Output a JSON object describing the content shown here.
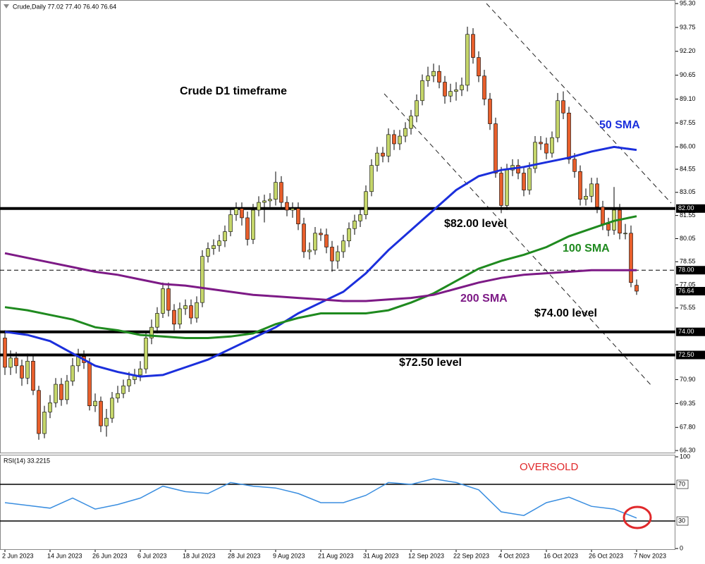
{
  "chart_data": [
    {
      "type": "candlestick",
      "header": "Crude,Daily 77.02 77.40 76.40 76.64",
      "categories": [
        "2 Jun 2023",
        null,
        null,
        null,
        null,
        null,
        null,
        null,
        "14 Jun 2023",
        null,
        null,
        null,
        null,
        null,
        null,
        null,
        "26 Jun 2023",
        null,
        null,
        null,
        null,
        null,
        null,
        null,
        "6 Jul 2023",
        null,
        null,
        null,
        null,
        null,
        null,
        null,
        "18 Jul 2023",
        null,
        null,
        null,
        null,
        null,
        null,
        null,
        "28 Jul 2023",
        null,
        null,
        null,
        null,
        null,
        null,
        null,
        "9 Aug 2023",
        null,
        null,
        null,
        null,
        null,
        null,
        null,
        "21 Aug 2023",
        null,
        null,
        null,
        null,
        null,
        null,
        null,
        "31 Aug 2023",
        null,
        null,
        null,
        null,
        null,
        null,
        null,
        "12 Sep 2023",
        null,
        null,
        null,
        null,
        null,
        null,
        null,
        "22 Sep 2023",
        null,
        null,
        null,
        null,
        null,
        null,
        null,
        "4 Oct 2023",
        null,
        null,
        null,
        null,
        null,
        null,
        null,
        "16 Oct 2023",
        null,
        null,
        null,
        null,
        null,
        null,
        null,
        "26 Oct 2023",
        null,
        null,
        null,
        null,
        null,
        null,
        null,
        "7 Nov 2023"
      ],
      "open": [
        73.6,
        71.7,
        72.3,
        71.8,
        71.0,
        72.1,
        70.2,
        67.4,
        68.8,
        69.4,
        70.6,
        69.6,
        70.8,
        71.8,
        72.4,
        72.0,
        69.2,
        69.5,
        67.9,
        68.4,
        69.7,
        70.0,
        70.5,
        70.9,
        71.2,
        71.6,
        73.6,
        74.3,
        75.2,
        76.8,
        75.4,
        74.5,
        75.5,
        75.7,
        74.9,
        75.9,
        78.9,
        79.4,
        79.6,
        79.9,
        80.5,
        81.6,
        82.0,
        81.4,
        80.0,
        81.9,
        82.4,
        82.5,
        82.6,
        83.7,
        82.4,
        81.9,
        82.0,
        81.0,
        79.2,
        79.3,
        80.4,
        80.3,
        79.5,
        78.6,
        79.2,
        79.9,
        80.7,
        81.2,
        81.6,
        83.1,
        84.8,
        85.6,
        85.4,
        86.8,
        86.2,
        86.7,
        87.2,
        88.0,
        89.0,
        90.3,
        90.6,
        90.9,
        90.2,
        89.3,
        89.6,
        89.7,
        90.0,
        93.3,
        91.8,
        90.6,
        89.1,
        87.5,
        84.3,
        82.2,
        84.5,
        84.8,
        84.3,
        83.2,
        84.6,
        86.3,
        86.2,
        85.6,
        86.6,
        89.0,
        88.2,
        85.2,
        84.4,
        82.6,
        82.8,
        83.6,
        82.1,
        81.0,
        80.6,
        81.9,
        80.4,
        80.4,
        77.02
      ],
      "high": [
        74.1,
        72.8,
        72.7,
        72.2,
        72.6,
        72.5,
        70.5,
        69.2,
        69.9,
        71.0,
        71.0,
        71.2,
        72.3,
        72.9,
        72.8,
        72.3,
        70.0,
        69.8,
        69.0,
        70.1,
        70.5,
        70.9,
        71.4,
        71.6,
        72.1,
        74.0,
        74.8,
        75.6,
        77.2,
        77.2,
        75.8,
        75.9,
        76.1,
        76.1,
        76.3,
        79.3,
        79.8,
        80.0,
        80.3,
        80.9,
        82.0,
        82.4,
        82.4,
        81.8,
        82.3,
        82.8,
        82.9,
        83.0,
        84.4,
        84.1,
        82.8,
        82.4,
        82.4,
        81.4,
        79.8,
        80.8,
        80.7,
        80.7,
        79.9,
        79.6,
        80.3,
        81.1,
        81.6,
        82.0,
        83.5,
        85.2,
        86.0,
        86.0,
        87.2,
        87.1,
        87.1,
        87.6,
        88.4,
        89.4,
        90.7,
        91.2,
        91.4,
        91.3,
        90.6,
        90.1,
        90.2,
        90.5,
        93.8,
        93.7,
        92.2,
        91.0,
        89.5,
        87.9,
        84.7,
        84.9,
        85.2,
        85.2,
        84.7,
        85.0,
        86.7,
        86.7,
        86.6,
        87.0,
        89.5,
        89.6,
        88.6,
        85.6,
        84.8,
        83.3,
        84.0,
        84.0,
        82.5,
        81.4,
        83.4,
        82.3,
        81.0,
        80.9,
        77.4
      ],
      "low": [
        71.2,
        71.2,
        71.3,
        70.5,
        70.6,
        69.9,
        67.0,
        67.1,
        68.4,
        69.1,
        69.2,
        69.3,
        70.5,
        71.4,
        71.6,
        68.9,
        68.8,
        67.5,
        67.2,
        68.1,
        69.4,
        69.7,
        70.1,
        70.6,
        70.8,
        71.3,
        73.2,
        73.9,
        74.9,
        75.0,
        74.1,
        74.2,
        75.1,
        74.5,
        74.6,
        75.6,
        78.5,
        79.0,
        79.2,
        79.5,
        80.2,
        81.2,
        80.9,
        79.6,
        79.7,
        81.5,
        81.1,
        82.1,
        82.2,
        82.0,
        81.5,
        81.4,
        80.6,
        78.8,
        78.7,
        79.0,
        79.9,
        79.1,
        77.9,
        78.1,
        78.8,
        79.5,
        80.3,
        80.8,
        81.3,
        82.8,
        84.4,
        85.0,
        85.0,
        85.8,
        85.8,
        86.3,
        86.8,
        87.6,
        88.7,
        89.9,
        90.2,
        89.8,
        88.8,
        88.9,
        89.0,
        89.3,
        89.6,
        91.4,
        90.2,
        88.7,
        87.1,
        84.0,
        81.7,
        81.9,
        84.1,
        83.9,
        82.8,
        82.9,
        84.3,
        85.8,
        85.2,
        85.3,
        86.3,
        87.8,
        84.9,
        84.0,
        82.2,
        82.2,
        82.4,
        81.7,
        80.6,
        80.2,
        80.3,
        80.0,
        80.0,
        76.9,
        76.4
      ],
      "close": [
        71.7,
        72.3,
        71.8,
        71.0,
        72.1,
        70.2,
        67.4,
        68.8,
        69.4,
        70.6,
        69.6,
        70.8,
        71.8,
        72.4,
        72.0,
        69.2,
        69.5,
        67.9,
        68.4,
        69.7,
        70.0,
        70.5,
        70.9,
        71.2,
        71.6,
        73.6,
        74.3,
        75.2,
        76.8,
        75.4,
        74.5,
        75.5,
        75.7,
        74.9,
        75.9,
        78.9,
        79.4,
        79.6,
        79.9,
        80.5,
        81.6,
        82.0,
        81.4,
        80.0,
        81.9,
        82.4,
        82.5,
        82.6,
        83.7,
        82.4,
        81.9,
        82.0,
        81.0,
        79.2,
        79.3,
        80.4,
        80.3,
        79.5,
        78.6,
        79.2,
        79.9,
        80.7,
        81.2,
        81.6,
        83.1,
        84.8,
        85.6,
        85.4,
        86.8,
        86.2,
        86.7,
        87.2,
        88.0,
        89.0,
        90.3,
        90.6,
        90.9,
        90.2,
        89.3,
        89.6,
        89.7,
        90.0,
        93.3,
        91.8,
        90.6,
        89.1,
        87.5,
        84.3,
        82.2,
        84.5,
        84.8,
        84.3,
        83.2,
        84.6,
        86.3,
        86.2,
        85.6,
        86.6,
        89.0,
        88.2,
        85.2,
        84.4,
        82.6,
        82.8,
        83.6,
        82.1,
        81.0,
        80.6,
        81.9,
        80.4,
        80.4,
        77.2,
        76.64
      ],
      "up_color": "#c5d66a",
      "down_color": "#e85f2c",
      "lines": [
        {
          "name": "50 SMA",
          "color": "#1b2fdc",
          "x": [
            0,
            4,
            8,
            12,
            16,
            20,
            24,
            28,
            32,
            36,
            40,
            44,
            48,
            52,
            56,
            60,
            64,
            68,
            72,
            76,
            80,
            84,
            88,
            92,
            96,
            100,
            104,
            108,
            112
          ],
          "values": [
            74.0,
            73.8,
            73.4,
            72.6,
            71.8,
            71.4,
            71.1,
            71.2,
            71.7,
            72.2,
            72.9,
            73.6,
            74.3,
            75.2,
            75.9,
            76.6,
            77.8,
            79.3,
            80.6,
            81.9,
            83.2,
            84.1,
            84.5,
            84.7,
            85.0,
            85.3,
            85.7,
            86.0,
            85.8
          ]
        },
        {
          "name": "100 SMA",
          "color": "#1f8a1f",
          "x": [
            0,
            4,
            8,
            12,
            16,
            20,
            24,
            28,
            32,
            36,
            40,
            44,
            48,
            52,
            56,
            60,
            64,
            68,
            72,
            76,
            80,
            84,
            88,
            92,
            96,
            100,
            104,
            108,
            112
          ],
          "values": [
            75.6,
            75.4,
            75.1,
            74.8,
            74.3,
            74.1,
            73.8,
            73.7,
            73.6,
            73.6,
            73.7,
            73.9,
            74.5,
            74.9,
            75.2,
            75.2,
            75.2,
            75.4,
            75.9,
            76.5,
            77.3,
            78.1,
            78.6,
            79.0,
            79.5,
            80.2,
            80.7,
            81.2,
            81.5
          ]
        },
        {
          "name": "200 SMA",
          "color": "#7d1a86",
          "x": [
            0,
            4,
            8,
            12,
            16,
            20,
            24,
            28,
            32,
            36,
            40,
            44,
            48,
            52,
            56,
            60,
            64,
            68,
            72,
            76,
            80,
            84,
            88,
            92,
            96,
            100,
            104,
            108,
            112
          ],
          "values": [
            79.1,
            78.8,
            78.5,
            78.2,
            77.9,
            77.7,
            77.4,
            77.1,
            77.0,
            76.8,
            76.6,
            76.4,
            76.3,
            76.2,
            76.1,
            76.0,
            76.0,
            76.1,
            76.2,
            76.4,
            76.8,
            77.2,
            77.5,
            77.7,
            77.8,
            77.9,
            78.0,
            78.0,
            78.0
          ]
        }
      ],
      "levels": [
        {
          "value": 82,
          "label": "82.00",
          "style": "solid"
        },
        {
          "value": 78,
          "label": "78.00",
          "style": "dashed"
        },
        {
          "value": 74,
          "label": "74.00",
          "style": "solid"
        },
        {
          "value": 72.5,
          "label": "72.50",
          "style": "solid"
        }
      ],
      "annotations": [
        {
          "text": "Crude D1 timeframe",
          "color": "#000000"
        },
        {
          "text": "$82.00 level",
          "color": "#000000"
        },
        {
          "text": "$74.00 level",
          "color": "#000000"
        },
        {
          "text": "$72.50 level",
          "color": "#000000"
        }
      ],
      "ylim": [
        66.12,
        95.53
      ],
      "yticks": [
        {
          "value": 95.3,
          "label": "95.30"
        },
        {
          "value": 93.75,
          "label": "93.75"
        },
        {
          "value": 92.2,
          "label": "92.20"
        },
        {
          "value": 90.65,
          "label": "90.65"
        },
        {
          "value": 89.1,
          "label": "89.10"
        },
        {
          "value": 87.55,
          "label": "87.55"
        },
        {
          "value": 86,
          "label": "86.00"
        },
        {
          "value": 84.55,
          "label": "84.55"
        },
        {
          "value": 83.05,
          "label": "83.05"
        },
        {
          "value": 81.55,
          "label": "81.55"
        },
        {
          "value": 80.05,
          "label": "80.05"
        },
        {
          "value": 78.55,
          "label": "78.55"
        },
        {
          "value": 77.05,
          "label": "77.05"
        },
        {
          "value": 75.55,
          "label": "75.55"
        },
        {
          "value": 70.9,
          "label": "70.90"
        },
        {
          "value": 69.35,
          "label": "69.35"
        },
        {
          "value": 67.8,
          "label": "67.80"
        },
        {
          "value": 66.3,
          "label": "66.30"
        }
      ]
    },
    {
      "type": "line",
      "label": "RSI(14) 33.2215",
      "color": "#3a8ee0",
      "x": [
        0,
        4,
        8,
        12,
        16,
        20,
        24,
        28,
        32,
        36,
        40,
        44,
        48,
        52,
        56,
        60,
        64,
        68,
        72,
        76,
        80,
        84,
        88,
        92,
        96,
        100,
        104,
        108,
        112
      ],
      "values": [
        50,
        47,
        44,
        55,
        43,
        48,
        55,
        68,
        62,
        60,
        72,
        68,
        66,
        60,
        50,
        50,
        58,
        72,
        70,
        76,
        72,
        64,
        40,
        36,
        50,
        56,
        46,
        43,
        33.2215
      ],
      "levels": [
        70,
        30
      ],
      "annotations": [
        {
          "text": "OVERSOLD",
          "color": "#e0282a"
        }
      ],
      "ylim": [
        -1.5,
        102.3
      ],
      "yticks": [
        0,
        100
      ]
    }
  ]
}
